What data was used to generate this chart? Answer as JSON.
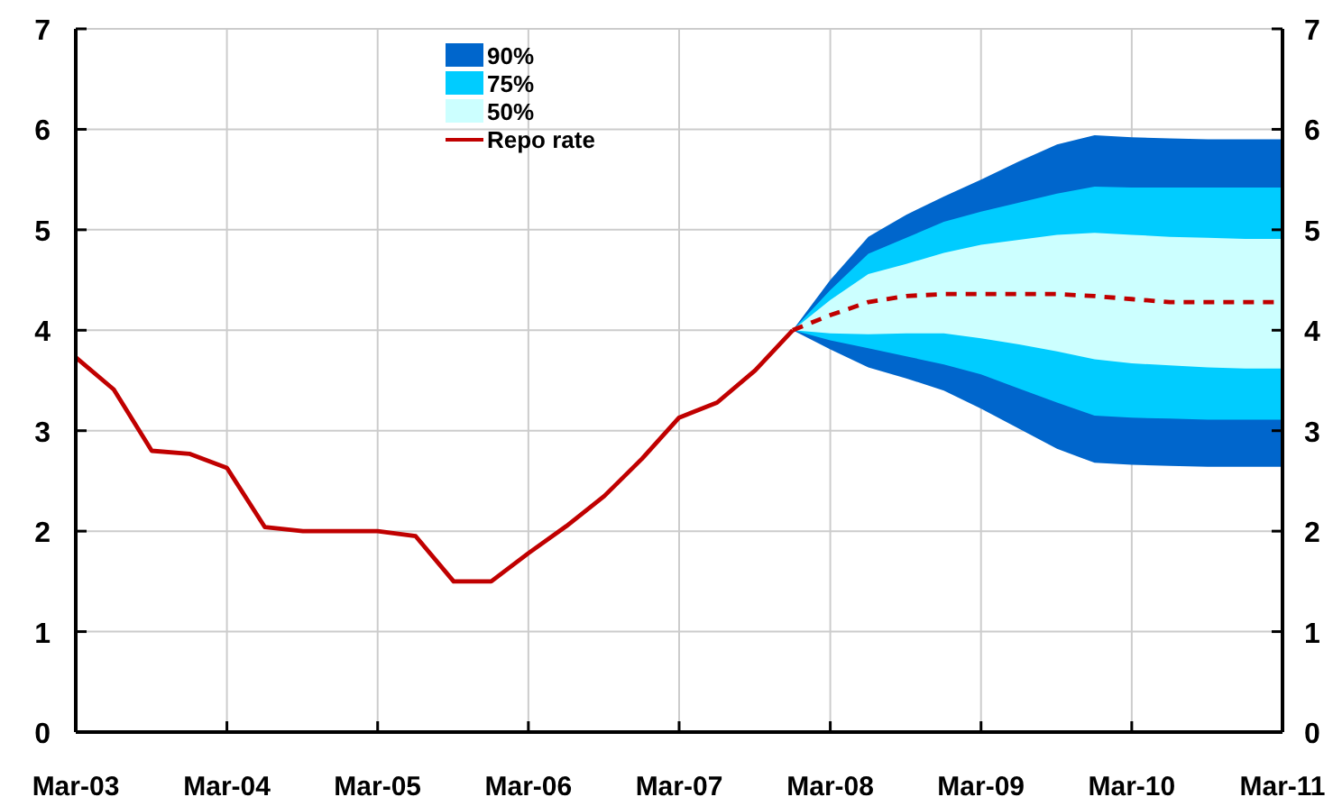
{
  "chart_data": {
    "type": "line",
    "xlim": [
      "2003-03",
      "2011-03"
    ],
    "xticks": [
      {
        "value": "2003-03",
        "label": "Mar-03"
      },
      {
        "value": "2004-03",
        "label": "Mar-04"
      },
      {
        "value": "2005-03",
        "label": "Mar-05"
      },
      {
        "value": "2006-03",
        "label": "Mar-06"
      },
      {
        "value": "2007-03",
        "label": "Mar-07"
      },
      {
        "value": "2008-03",
        "label": "Mar-08"
      },
      {
        "value": "2009-03",
        "label": "Mar-09"
      },
      {
        "value": "2010-03",
        "label": "Mar-10"
      },
      {
        "value": "2011-03",
        "label": "Mar-11"
      }
    ],
    "ylim": [
      0,
      7
    ],
    "yticks": [
      0,
      1,
      2,
      3,
      4,
      5,
      6,
      7
    ],
    "y2lim": [
      0,
      7
    ],
    "y2ticks": [
      0,
      1,
      2,
      3,
      4,
      5,
      6,
      7
    ],
    "grid": true,
    "legend": "top",
    "series": [
      {
        "name": "90%",
        "type": "area",
        "color": "#0066cc",
        "x": [
          "2007-12",
          "2008-03",
          "2008-06",
          "2008-09",
          "2008-12",
          "2009-03",
          "2009-06",
          "2009-09",
          "2009-12",
          "2010-03",
          "2010-06",
          "2010-09",
          "2010-12",
          "2011-03"
        ],
        "values": [
          null,
          null,
          null,
          null,
          null,
          null,
          null,
          null,
          null,
          null,
          null,
          null,
          null,
          null
        ],
        "lower": [
          4.0,
          3.81,
          3.63,
          3.52,
          3.4,
          3.22,
          3.02,
          2.82,
          2.68,
          2.66,
          2.65,
          2.64,
          2.64,
          2.64
        ],
        "upper": [
          4.0,
          4.5,
          4.93,
          5.15,
          5.33,
          5.5,
          5.68,
          5.85,
          5.94,
          5.92,
          5.91,
          5.9,
          5.9,
          5.9
        ]
      },
      {
        "name": "75%",
        "type": "area",
        "color": "#00ccff",
        "x": [
          "2007-12",
          "2008-03",
          "2008-06",
          "2008-09",
          "2008-12",
          "2009-03",
          "2009-06",
          "2009-09",
          "2009-12",
          "2010-03",
          "2010-06",
          "2010-09",
          "2010-12",
          "2011-03"
        ],
        "values": [
          null,
          null,
          null,
          null,
          null,
          null,
          null,
          null,
          null,
          null,
          null,
          null,
          null,
          null
        ],
        "lower": [
          4.0,
          3.9,
          3.82,
          3.74,
          3.66,
          3.56,
          3.42,
          3.28,
          3.15,
          3.13,
          3.12,
          3.11,
          3.11,
          3.11
        ],
        "upper": [
          4.0,
          4.4,
          4.76,
          4.92,
          5.08,
          5.18,
          5.27,
          5.36,
          5.43,
          5.42,
          5.42,
          5.42,
          5.42,
          5.42
        ]
      },
      {
        "name": "50%",
        "type": "area",
        "color": "#ccffff",
        "x": [
          "2007-12",
          "2008-03",
          "2008-06",
          "2008-09",
          "2008-12",
          "2009-03",
          "2009-06",
          "2009-09",
          "2009-12",
          "2010-03",
          "2010-06",
          "2010-09",
          "2010-12",
          "2011-03"
        ],
        "values": [
          null,
          null,
          null,
          null,
          null,
          null,
          null,
          null,
          null,
          null,
          null,
          null,
          null,
          null
        ],
        "lower": [
          4.0,
          3.97,
          3.96,
          3.97,
          3.97,
          3.92,
          3.86,
          3.79,
          3.71,
          3.67,
          3.65,
          3.63,
          3.62,
          3.62
        ],
        "upper": [
          4.0,
          4.3,
          4.56,
          4.66,
          4.77,
          4.85,
          4.9,
          4.95,
          4.97,
          4.95,
          4.93,
          4.92,
          4.91,
          4.91
        ]
      },
      {
        "name": "Repo rate",
        "type": "line",
        "color": "#c00000",
        "line_style": "solid",
        "x": [
          "2003-03",
          "2003-06",
          "2003-09",
          "2003-12",
          "2004-03",
          "2004-06",
          "2004-09",
          "2004-12",
          "2005-03",
          "2005-06",
          "2005-09",
          "2005-12",
          "2006-03",
          "2006-06",
          "2006-09",
          "2006-12",
          "2007-03",
          "2007-06",
          "2007-09",
          "2007-12"
        ],
        "values": [
          3.73,
          3.41,
          2.8,
          2.77,
          2.63,
          2.04,
          2.0,
          2.0,
          2.0,
          1.95,
          1.5,
          1.5,
          1.78,
          2.05,
          2.35,
          2.72,
          3.13,
          3.28,
          3.6,
          4.0
        ]
      },
      {
        "type": "line",
        "color": "#c00000",
        "line_style": "dashed",
        "x": [
          "2007-12",
          "2008-03",
          "2008-06",
          "2008-09",
          "2008-12",
          "2009-03",
          "2009-06",
          "2009-09",
          "2009-12",
          "2010-03",
          "2010-06",
          "2010-09",
          "2010-12",
          "2011-03"
        ],
        "values": [
          4.0,
          4.15,
          4.28,
          4.34,
          4.36,
          4.36,
          4.36,
          4.36,
          4.34,
          4.31,
          4.28,
          4.28,
          4.28,
          4.28
        ]
      }
    ]
  }
}
